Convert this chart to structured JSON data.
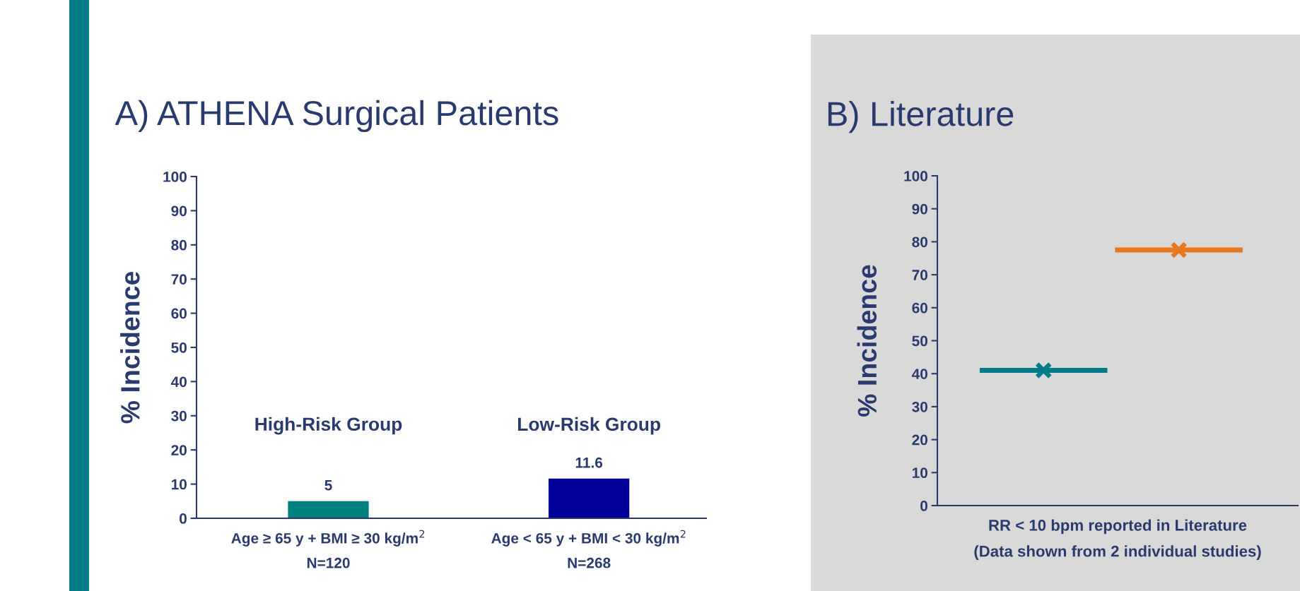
{
  "chart_data": [
    {
      "type": "bar",
      "title": "A) ATHENA Surgical Patients",
      "ylabel": "% Incidence",
      "categories": [
        "Age ≥ 65 y + BMI ≥ 30 kg/m$^{2}$\nN=120",
        "Age < 65 y + BMI < 30 kg/m$^{2}$\nN=268"
      ],
      "values": [
        5,
        11.6
      ],
      "colors": [
        "#00807f",
        "#000099"
      ],
      "data_labels": true,
      "annotations": [
        "High-Risk Group",
        "Low-Risk Group"
      ],
      "ylim": [
        0,
        100
      ],
      "yticks": [
        0,
        10,
        20,
        30,
        40,
        50,
        60,
        70,
        80,
        90,
        100
      ],
      "grid": false
    },
    {
      "type": "scatter",
      "title": "B) Literature",
      "ylabel": "% Incidence",
      "xlabel": "RR < 10 bpm reported in Literature\n(Data shown from 2 individual studies)",
      "categories": [
        null,
        null
      ],
      "marker": "cross",
      "tick_labels": "y",
      "series": [
        {
          "color": "#007c89",
          "values": [
            41,
            null
          ]
        },
        {
          "color": "#e8771e",
          "values": [
            null,
            77.5
          ]
        }
      ],
      "ylim": [
        0,
        100
      ],
      "yticks": [
        0,
        10,
        20,
        30,
        40,
        50,
        60,
        70,
        80,
        90,
        100
      ],
      "grid": false,
      "legend": false
    }
  ]
}
